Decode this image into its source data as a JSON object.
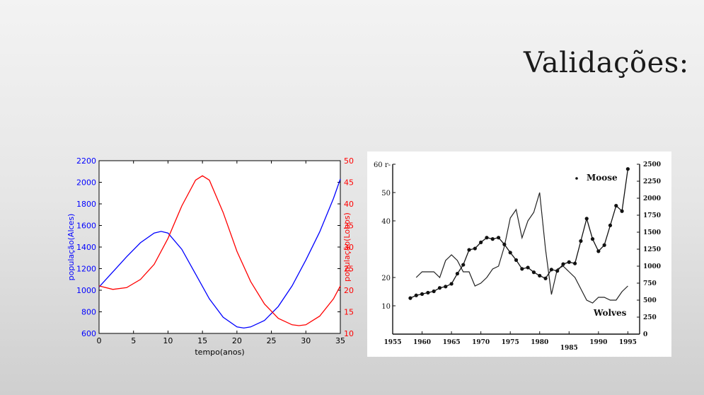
{
  "slide": {
    "title": "Validações:"
  },
  "chart_data": [
    {
      "type": "line",
      "xlabel": "tempo(anos)",
      "ylabel_left": "população(Alces)",
      "ylabel_right": "população(Lobos)",
      "xlim": [
        0,
        35
      ],
      "ylim_left": [
        600,
        2200
      ],
      "ylim_right": [
        10,
        50
      ],
      "xticks": [
        0,
        5,
        10,
        15,
        20,
        25,
        30,
        35
      ],
      "yticks_left": [
        600,
        800,
        1000,
        1200,
        1400,
        1600,
        1800,
        2000,
        2200
      ],
      "yticks_right": [
        10,
        15,
        20,
        25,
        30,
        35,
        40,
        45,
        50
      ],
      "colors": {
        "left": "#0000ff",
        "right": "#ff0000"
      },
      "series": [
        {
          "name": "Alces",
          "axis": "left",
          "color": "#0000ff",
          "x": [
            0,
            2,
            4,
            6,
            8,
            9,
            10,
            12,
            14,
            16,
            18,
            20,
            21,
            22,
            24,
            26,
            28,
            30,
            32,
            34,
            35
          ],
          "y": [
            1030,
            1170,
            1310,
            1440,
            1530,
            1545,
            1530,
            1380,
            1150,
            920,
            750,
            660,
            650,
            660,
            720,
            850,
            1040,
            1280,
            1540,
            1850,
            2030
          ]
        },
        {
          "name": "Lobos",
          "axis": "right",
          "color": "#ff0000",
          "x": [
            0,
            2,
            4,
            6,
            8,
            10,
            12,
            14,
            15,
            16,
            18,
            20,
            22,
            24,
            26,
            28,
            29,
            30,
            32,
            34,
            35
          ],
          "y": [
            21,
            20.2,
            20.6,
            22.5,
            26,
            32,
            39.5,
            45.5,
            46.5,
            45.5,
            38,
            29,
            22,
            16.8,
            13.5,
            12,
            11.8,
            12,
            14,
            18,
            21
          ]
        }
      ]
    },
    {
      "type": "line",
      "xlim": [
        1955,
        1997
      ],
      "ylim_left": [
        0,
        60
      ],
      "ylim_right": [
        0,
        2500
      ],
      "xticks": [
        1955,
        1960,
        1965,
        1970,
        1975,
        1980,
        1985,
        1990,
        1995
      ],
      "xticklabels": [
        "1955",
        "1960",
        "1965",
        "1970",
        "1975",
        "1980",
        "1985",
        "1990",
        "1995"
      ],
      "yticks_left": [
        10,
        20,
        40,
        50,
        60
      ],
      "yticklabels_left": [
        "10",
        "20",
        "40",
        "50",
        "60 r-"
      ],
      "yticks_right": [
        0,
        250,
        500,
        750,
        1000,
        1250,
        1500,
        1750,
        2000,
        2250,
        2500
      ],
      "yticklabels_right": [
        "0",
        "250",
        "500",
        "750",
        "1000",
        "1250",
        "1500",
        "1750",
        "2000",
        "2250",
        "2500"
      ],
      "annotations": [
        "Moose",
        "Wolves"
      ],
      "series": [
        {
          "name": "Moose",
          "axis": "right",
          "marker": "dot",
          "x": [
            1958,
            1959,
            1960,
            1961,
            1962,
            1963,
            1964,
            1965,
            1966,
            1967,
            1968,
            1969,
            1970,
            1971,
            1972,
            1973,
            1974,
            1975,
            1976,
            1977,
            1978,
            1979,
            1980,
            1981,
            1982,
            1983,
            1984,
            1985,
            1986,
            1987,
            1988,
            1989,
            1990,
            1991,
            1992,
            1993,
            1994,
            1995
          ],
          "y": [
            530,
            570,
            590,
            610,
            630,
            680,
            700,
            740,
            890,
            1020,
            1240,
            1260,
            1350,
            1420,
            1400,
            1420,
            1320,
            1200,
            1090,
            960,
            980,
            910,
            860,
            820,
            950,
            930,
            1030,
            1060,
            1040,
            1370,
            1700,
            1400,
            1220,
            1310,
            1600,
            1890,
            1810,
            2430
          ]
        },
        {
          "name": "Wolves",
          "axis": "left",
          "x": [
            1959,
            1960,
            1961,
            1962,
            1963,
            1964,
            1965,
            1966,
            1967,
            1968,
            1969,
            1970,
            1971,
            1972,
            1973,
            1974,
            1975,
            1976,
            1977,
            1978,
            1979,
            1980,
            1981,
            1982,
            1983,
            1984,
            1985,
            1986,
            1987,
            1988,
            1989,
            1990,
            1991,
            1992,
            1993,
            1994,
            1995
          ],
          "y": [
            20,
            22,
            22,
            22,
            20,
            26,
            28,
            26,
            22,
            22,
            17,
            18,
            20,
            23,
            24,
            31,
            41,
            44,
            34,
            40,
            43,
            50,
            30,
            14,
            23,
            24,
            22,
            20,
            16,
            12,
            11,
            13,
            13,
            12,
            12,
            15,
            17
          ]
        }
      ]
    }
  ]
}
